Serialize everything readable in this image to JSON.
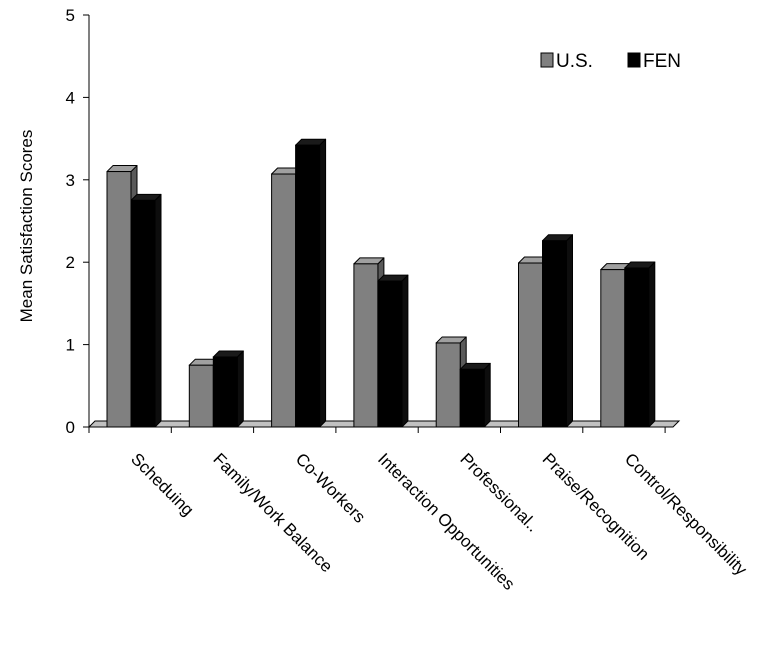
{
  "chart_data": {
    "type": "bar",
    "title": "",
    "xlabel": "",
    "ylabel": "Mean Satisfaction Scores",
    "ylim": [
      0,
      5
    ],
    "yticks": [
      0,
      1,
      2,
      3,
      4,
      5
    ],
    "grid": false,
    "legend_position": "top-right",
    "style": "3d-clustered-column",
    "categories": [
      "Scheduing",
      "Family/Work Balance",
      "Co-Workers",
      "Interaction Opportunities",
      "Professional..",
      "Praise/Recognition",
      "Control/Responsibility"
    ],
    "series": [
      {
        "name": "U.S.",
        "color": "#808080",
        "values": [
          3.1,
          0.75,
          3.07,
          1.98,
          1.02,
          1.99,
          1.91
        ]
      },
      {
        "name": "FEN",
        "color": "#000000",
        "values": [
          2.75,
          0.85,
          3.42,
          1.77,
          0.7,
          2.26,
          1.93
        ]
      }
    ]
  }
}
